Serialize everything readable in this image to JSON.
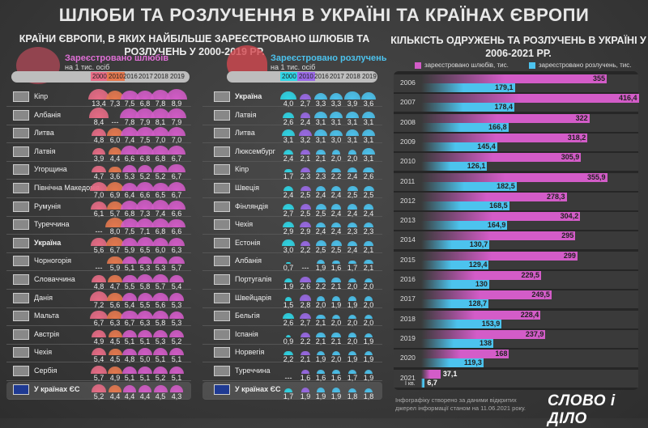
{
  "title": "ШЛЮБИ ТА РОЗЛУЧЕННЯ В УКРАЇНІ ТА КРАЇНАХ ЄВРОПИ",
  "left_subtitle": "КРАЇНИ ЄВРОПИ, В ЯКИХ НАЙБІЛЬШЕ ЗАРЕЄСТРОВАНО ШЛЮБІВ ТА РОЗЛУЧЕНЬ У 2000-2019 РР.",
  "right_subtitle": "КІЛЬКІСТЬ ОДРУЖЕНЬ ТА РОЗЛУЧЕНЬ В УКРАЇНІ У 2006-2021 РР.",
  "footer": {
    "source": "Інфографіку створено за даними відкритих джерел інформації станом на 11.06.2021 року.",
    "logo": "СЛОВО і ДІЛО"
  },
  "colors": {
    "marriage": "#d35cc8",
    "marriage_2000": "#e86c86",
    "marriage_2010": "#e6794f",
    "divorce": "#4cc3ee",
    "divorce_2000": "#2fd6e6",
    "divorce_2010": "#9a6ae6"
  },
  "chart_data": [
    {
      "type": "table",
      "title": "Зареєстровано шлюбів",
      "subtitle": "на 1 тис. осіб",
      "columns": [
        "2000",
        "2010",
        "2016",
        "2017",
        "2018",
        "2019"
      ],
      "rows": [
        {
          "country": "Кіпр",
          "flag": "cyprus-flag",
          "values": [
            "13,4",
            "7,3",
            "7,5",
            "6,8",
            "7,8",
            "8,9"
          ]
        },
        {
          "country": "Албанія",
          "flag": "albania-flag",
          "values": [
            "8,4",
            "---",
            "7,8",
            "7,9",
            "8,1",
            "7,9"
          ]
        },
        {
          "country": "Литва",
          "flag": "lithuania-flag",
          "values": [
            "4,8",
            "6,0",
            "7,4",
            "7,5",
            "7,0",
            "7,0"
          ]
        },
        {
          "country": "Латвія",
          "flag": "latvia-flag",
          "values": [
            "3,9",
            "4,4",
            "6,6",
            "6,8",
            "6,8",
            "6,7"
          ]
        },
        {
          "country": "Угорщина",
          "flag": "hungary-flag",
          "values": [
            "4,7",
            "3,6",
            "5,3",
            "5,2",
            "5,2",
            "6,7"
          ]
        },
        {
          "country": "Північна Македонія",
          "flag": "north-macedonia-flag",
          "values": [
            "7,0",
            "6,9",
            "6,4",
            "6,6",
            "6,5",
            "6,7"
          ]
        },
        {
          "country": "Румунія",
          "flag": "romania-flag",
          "values": [
            "6,1",
            "5,7",
            "6,8",
            "7,3",
            "7,4",
            "6,6"
          ]
        },
        {
          "country": "Туреччина",
          "flag": "turkey-flag",
          "values": [
            "---",
            "8,0",
            "7,5",
            "7,1",
            "6,8",
            "6,6"
          ]
        },
        {
          "country": "Україна",
          "flag": "ukraine-flag",
          "values": [
            "5,6",
            "6,7",
            "5,9",
            "6,5",
            "6,0",
            "6,3"
          ],
          "bold": true
        },
        {
          "country": "Чорногорія",
          "flag": "montenegro-flag",
          "values": [
            "---",
            "5,9",
            "5,1",
            "5,3",
            "5,3",
            "5,7"
          ]
        },
        {
          "country": "Словаччина",
          "flag": "slovakia-flag",
          "values": [
            "4,8",
            "4,7",
            "5,5",
            "5,8",
            "5,7",
            "5,4"
          ]
        },
        {
          "country": "Данія",
          "flag": "denmark-flag",
          "values": [
            "7,2",
            "5,6",
            "5,4",
            "5,5",
            "5,6",
            "5,3"
          ]
        },
        {
          "country": "Мальта",
          "flag": "malta-flag",
          "values": [
            "6,7",
            "6,3",
            "6,7",
            "6,3",
            "5,8",
            "5,3"
          ]
        },
        {
          "country": "Австрія",
          "flag": "austria-flag",
          "values": [
            "4,9",
            "4,5",
            "5,1",
            "5,1",
            "5,3",
            "5,2"
          ]
        },
        {
          "country": "Чехія",
          "flag": "czechia-flag",
          "values": [
            "5,4",
            "4,5",
            "4,8",
            "5,0",
            "5,1",
            "5,1"
          ]
        },
        {
          "country": "Сербія",
          "flag": "serbia-flag",
          "values": [
            "5,7",
            "4,9",
            "5,1",
            "5,1",
            "5,2",
            "5,1"
          ]
        },
        {
          "country": "У країнах ЄС",
          "flag": "eu-flag",
          "values": [
            "5,2",
            "4,4",
            "4,4",
            "4,4",
            "4,5",
            "4,3"
          ],
          "bold": true
        }
      ]
    },
    {
      "type": "table",
      "title": "Зареєстровано розлучень",
      "subtitle": "на 1 тис. осіб",
      "columns": [
        "2000",
        "2010",
        "2016",
        "2017",
        "2018",
        "2019"
      ],
      "rows": [
        {
          "country": "Україна",
          "flag": "ukraine-flag",
          "values": [
            "4,0",
            "2,7",
            "3,3",
            "3,3",
            "3,9",
            "3,6"
          ],
          "bold": true
        },
        {
          "country": "Латвія",
          "flag": "latvia-flag",
          "values": [
            "2,6",
            "2,4",
            "3,1",
            "3,1",
            "3,1",
            "3,1"
          ]
        },
        {
          "country": "Литва",
          "flag": "lithuania-flag",
          "values": [
            "3,1",
            "3,2",
            "3,1",
            "3,0",
            "3,1",
            "3,1"
          ]
        },
        {
          "country": "Люксембург",
          "flag": "luxembourg-flag",
          "values": [
            "2,4",
            "2,1",
            "2,1",
            "2,0",
            "2,0",
            "3,1"
          ]
        },
        {
          "country": "Кіпр",
          "flag": "cyprus-flag",
          "values": [
            "1,7",
            "2,3",
            "2,3",
            "2,2",
            "2,4",
            "2,6"
          ]
        },
        {
          "country": "Швеція",
          "flag": "sweden-flag",
          "values": [
            "2,4",
            "2,5",
            "2,4",
            "2,4",
            "2,5",
            "2,5"
          ]
        },
        {
          "country": "Фінляндія",
          "flag": "finland-flag",
          "values": [
            "2,7",
            "2,5",
            "2,5",
            "2,4",
            "2,4",
            "2,4"
          ]
        },
        {
          "country": "Чехія",
          "flag": "czechia-flag",
          "values": [
            "2,9",
            "2,9",
            "2,4",
            "2,4",
            "2,3",
            "2,3"
          ]
        },
        {
          "country": "Естонія",
          "flag": "estonia-flag",
          "values": [
            "3,0",
            "2,2",
            "2,5",
            "2,5",
            "2,4",
            "2,1"
          ]
        },
        {
          "country": "Албанія",
          "flag": "albania-flag",
          "values": [
            "0,7",
            "---",
            "1,9",
            "1,6",
            "1,7",
            "2,1"
          ]
        },
        {
          "country": "Португалія",
          "flag": "portugal-flag",
          "values": [
            "1,9",
            "2,6",
            "2,2",
            "2,1",
            "2,0",
            "2,0"
          ]
        },
        {
          "country": "Швейцарія",
          "flag": "switzerland-flag",
          "values": [
            "1,5",
            "2,8",
            "2,0",
            "1,9",
            "1,9",
            "2,0"
          ]
        },
        {
          "country": "Бельгія",
          "flag": "belgium-flag",
          "values": [
            "2,6",
            "2,7",
            "2,1",
            "2,0",
            "2,0",
            "2,0"
          ]
        },
        {
          "country": "Іспанія",
          "flag": "spain-flag",
          "values": [
            "0,9",
            "2,2",
            "2,1",
            "2,1",
            "2,0",
            "1,9"
          ]
        },
        {
          "country": "Норвегія",
          "flag": "norway-flag",
          "values": [
            "2,2",
            "2,1",
            "1,9",
            "2,0",
            "1,9",
            "1,9"
          ]
        },
        {
          "country": "Туреччина",
          "flag": "turkey-flag",
          "values": [
            "---",
            "1,6",
            "1,6",
            "1,6",
            "1,7",
            "1,9"
          ]
        },
        {
          "country": "У країнах ЄС",
          "flag": "eu-flag",
          "values": [
            "1,7",
            "1,9",
            "1,9",
            "1,9",
            "1,8",
            "1,8"
          ],
          "bold": true
        }
      ]
    },
    {
      "type": "bar",
      "orientation": "horizontal",
      "title": "КІЛЬКІСТЬ ОДРУЖЕНЬ ТА РОЗЛУЧЕНЬ В УКРАЇНІ У 2006-2021 РР.",
      "categories": [
        "2006",
        "2007",
        "2008",
        "2009",
        "2010",
        "2011",
        "2012",
        "2013",
        "2014",
        "2015",
        "2016",
        "2017",
        "2018",
        "2019",
        "2020",
        "2021"
      ],
      "category_note": {
        "2021": "І кв."
      },
      "series": [
        {
          "name": "зареєстровано шлюбів, тис.",
          "values": [
            355,
            416.4,
            322,
            318.2,
            305.9,
            355.9,
            278.3,
            304.2,
            295,
            299,
            229.5,
            249.5,
            228.4,
            237.9,
            168,
            37.1
          ],
          "labels": [
            "355",
            "416,4",
            "322",
            "318,2",
            "305,9",
            "355,9",
            "278,3",
            "304,2",
            "295",
            "299",
            "229,5",
            "249,5",
            "228,4",
            "237,9",
            "168",
            "37,1"
          ]
        },
        {
          "name": "зареєстровано розлучень, тис.",
          "values": [
            179.1,
            178.4,
            166.8,
            145.4,
            126.1,
            182.5,
            168.5,
            164.9,
            130.7,
            129.4,
            130,
            128.7,
            153.9,
            138,
            119.3,
            6.7
          ],
          "labels": [
            "179,1",
            "178,4",
            "166,8",
            "145,4",
            "126,1",
            "182,5",
            "168,5",
            "164,9",
            "130,7",
            "129,4",
            "130",
            "128,7",
            "153,9",
            "138",
            "119,3",
            "6,7"
          ]
        }
      ],
      "legend": "top",
      "xlim": [
        0,
        430
      ]
    }
  ]
}
